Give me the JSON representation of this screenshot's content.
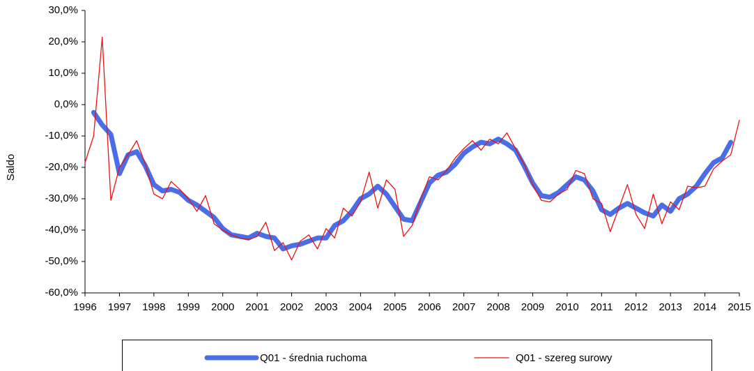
{
  "chart_data": {
    "type": "line",
    "y_label": "Saldo",
    "x": [
      1996,
      1996.25,
      1996.5,
      1996.75,
      1997,
      1997.25,
      1997.5,
      1997.75,
      1998,
      1998.25,
      1998.5,
      1998.75,
      1999,
      1999.25,
      1999.5,
      1999.75,
      2000,
      2000.25,
      2000.5,
      2000.75,
      2001,
      2001.25,
      2001.5,
      2001.75,
      2002,
      2002.25,
      2002.5,
      2002.75,
      2003,
      2003.25,
      2003.5,
      2003.75,
      2004,
      2004.25,
      2004.5,
      2004.75,
      2005,
      2005.25,
      2005.5,
      2005.75,
      2006,
      2006.25,
      2006.5,
      2006.75,
      2007,
      2007.25,
      2007.5,
      2007.75,
      2008,
      2008.25,
      2008.5,
      2008.75,
      2009,
      2009.25,
      2009.5,
      2009.75,
      2010,
      2010.25,
      2010.5,
      2010.75,
      2011,
      2011.25,
      2011.5,
      2011.75,
      2012,
      2012.25,
      2012.5,
      2012.75,
      2013,
      2013.25,
      2013.5,
      2013.75,
      2014,
      2014.25,
      2014.5,
      2014.75,
      2015
    ],
    "series": [
      {
        "name": "Q01 - średnia ruchoma",
        "color": "#4a6ee8",
        "width": 7,
        "values": [
          null,
          -2.5,
          -6.5,
          -9.5,
          -22,
          -16,
          -15,
          -19.5,
          -25.5,
          -27.5,
          -27,
          -28,
          -30.5,
          -32,
          -34,
          -36,
          -39.5,
          -41.5,
          -42,
          -42.5,
          -41,
          -42,
          -42.5,
          -46,
          -45,
          -44.5,
          -43.5,
          -42.5,
          -42.5,
          -38.5,
          -37,
          -34,
          -30,
          -28.5,
          -26,
          -28.5,
          -32.5,
          -36.5,
          -37,
          -31,
          -25,
          -22.5,
          -21.5,
          -19,
          -15.5,
          -13.5,
          -12,
          -12.5,
          -11,
          -12.5,
          -14.5,
          -19.5,
          -25,
          -29,
          -29.5,
          -28,
          -25.5,
          -23,
          -24,
          -27.5,
          -33.5,
          -35,
          -33,
          -31.5,
          -33,
          -34.5,
          -35.5,
          -32,
          -34,
          -30,
          -28.5,
          -26,
          -22,
          -18.5,
          -17,
          -12,
          null
        ]
      },
      {
        "name": "Q01 - szereg surowy",
        "color": "#ee1111",
        "width": 1.3,
        "values": [
          -18.5,
          -10,
          21.5,
          -30.5,
          -20,
          -16,
          -11.5,
          -19,
          -28.5,
          -30,
          -24.5,
          -27,
          -30,
          -34,
          -29,
          -38,
          -40,
          -41.5,
          -42.5,
          -43,
          -42,
          -37.5,
          -46.5,
          -44,
          -49.5,
          -43.5,
          -41.5,
          -46,
          -39.5,
          -42.5,
          -33,
          -35.5,
          -31,
          -21.5,
          -33,
          -24,
          -27,
          -42,
          -38.5,
          -30,
          -23,
          -24,
          -21,
          -17,
          -14,
          -11.5,
          -14.5,
          -11,
          -12.5,
          -9,
          -14,
          -19,
          -25.5,
          -30.5,
          -31,
          -28.5,
          -27,
          -21,
          -22,
          -30,
          -31.5,
          -40.5,
          -33,
          -25.5,
          -35,
          -39.5,
          -28.5,
          -38,
          -31,
          -33.5,
          -26,
          -26.5,
          -26,
          -20.5,
          -18,
          -16,
          -5
        ]
      }
    ],
    "xlim": [
      1996,
      2015
    ],
    "xticks": [
      1996,
      1997,
      1998,
      1999,
      2000,
      2001,
      2002,
      2003,
      2004,
      2005,
      2006,
      2007,
      2008,
      2009,
      2010,
      2011,
      2012,
      2013,
      2014,
      2015
    ],
    "ylim": [
      -60,
      30
    ],
    "yticks": [
      {
        "value": -60,
        "label": "-60,0%"
      },
      {
        "value": -50,
        "label": "-50,0%"
      },
      {
        "value": -40,
        "label": "-40,0%"
      },
      {
        "value": -30,
        "label": "-30,0%"
      },
      {
        "value": -20,
        "label": "-20,0%"
      },
      {
        "value": -10,
        "label": "-10,0%"
      },
      {
        "value": 0,
        "label": "0,0%"
      },
      {
        "value": 10,
        "label": "10,0%"
      },
      {
        "value": 20,
        "label": "20,0%"
      },
      {
        "value": 30,
        "label": "30,0%"
      }
    ],
    "legend": "bottom"
  }
}
